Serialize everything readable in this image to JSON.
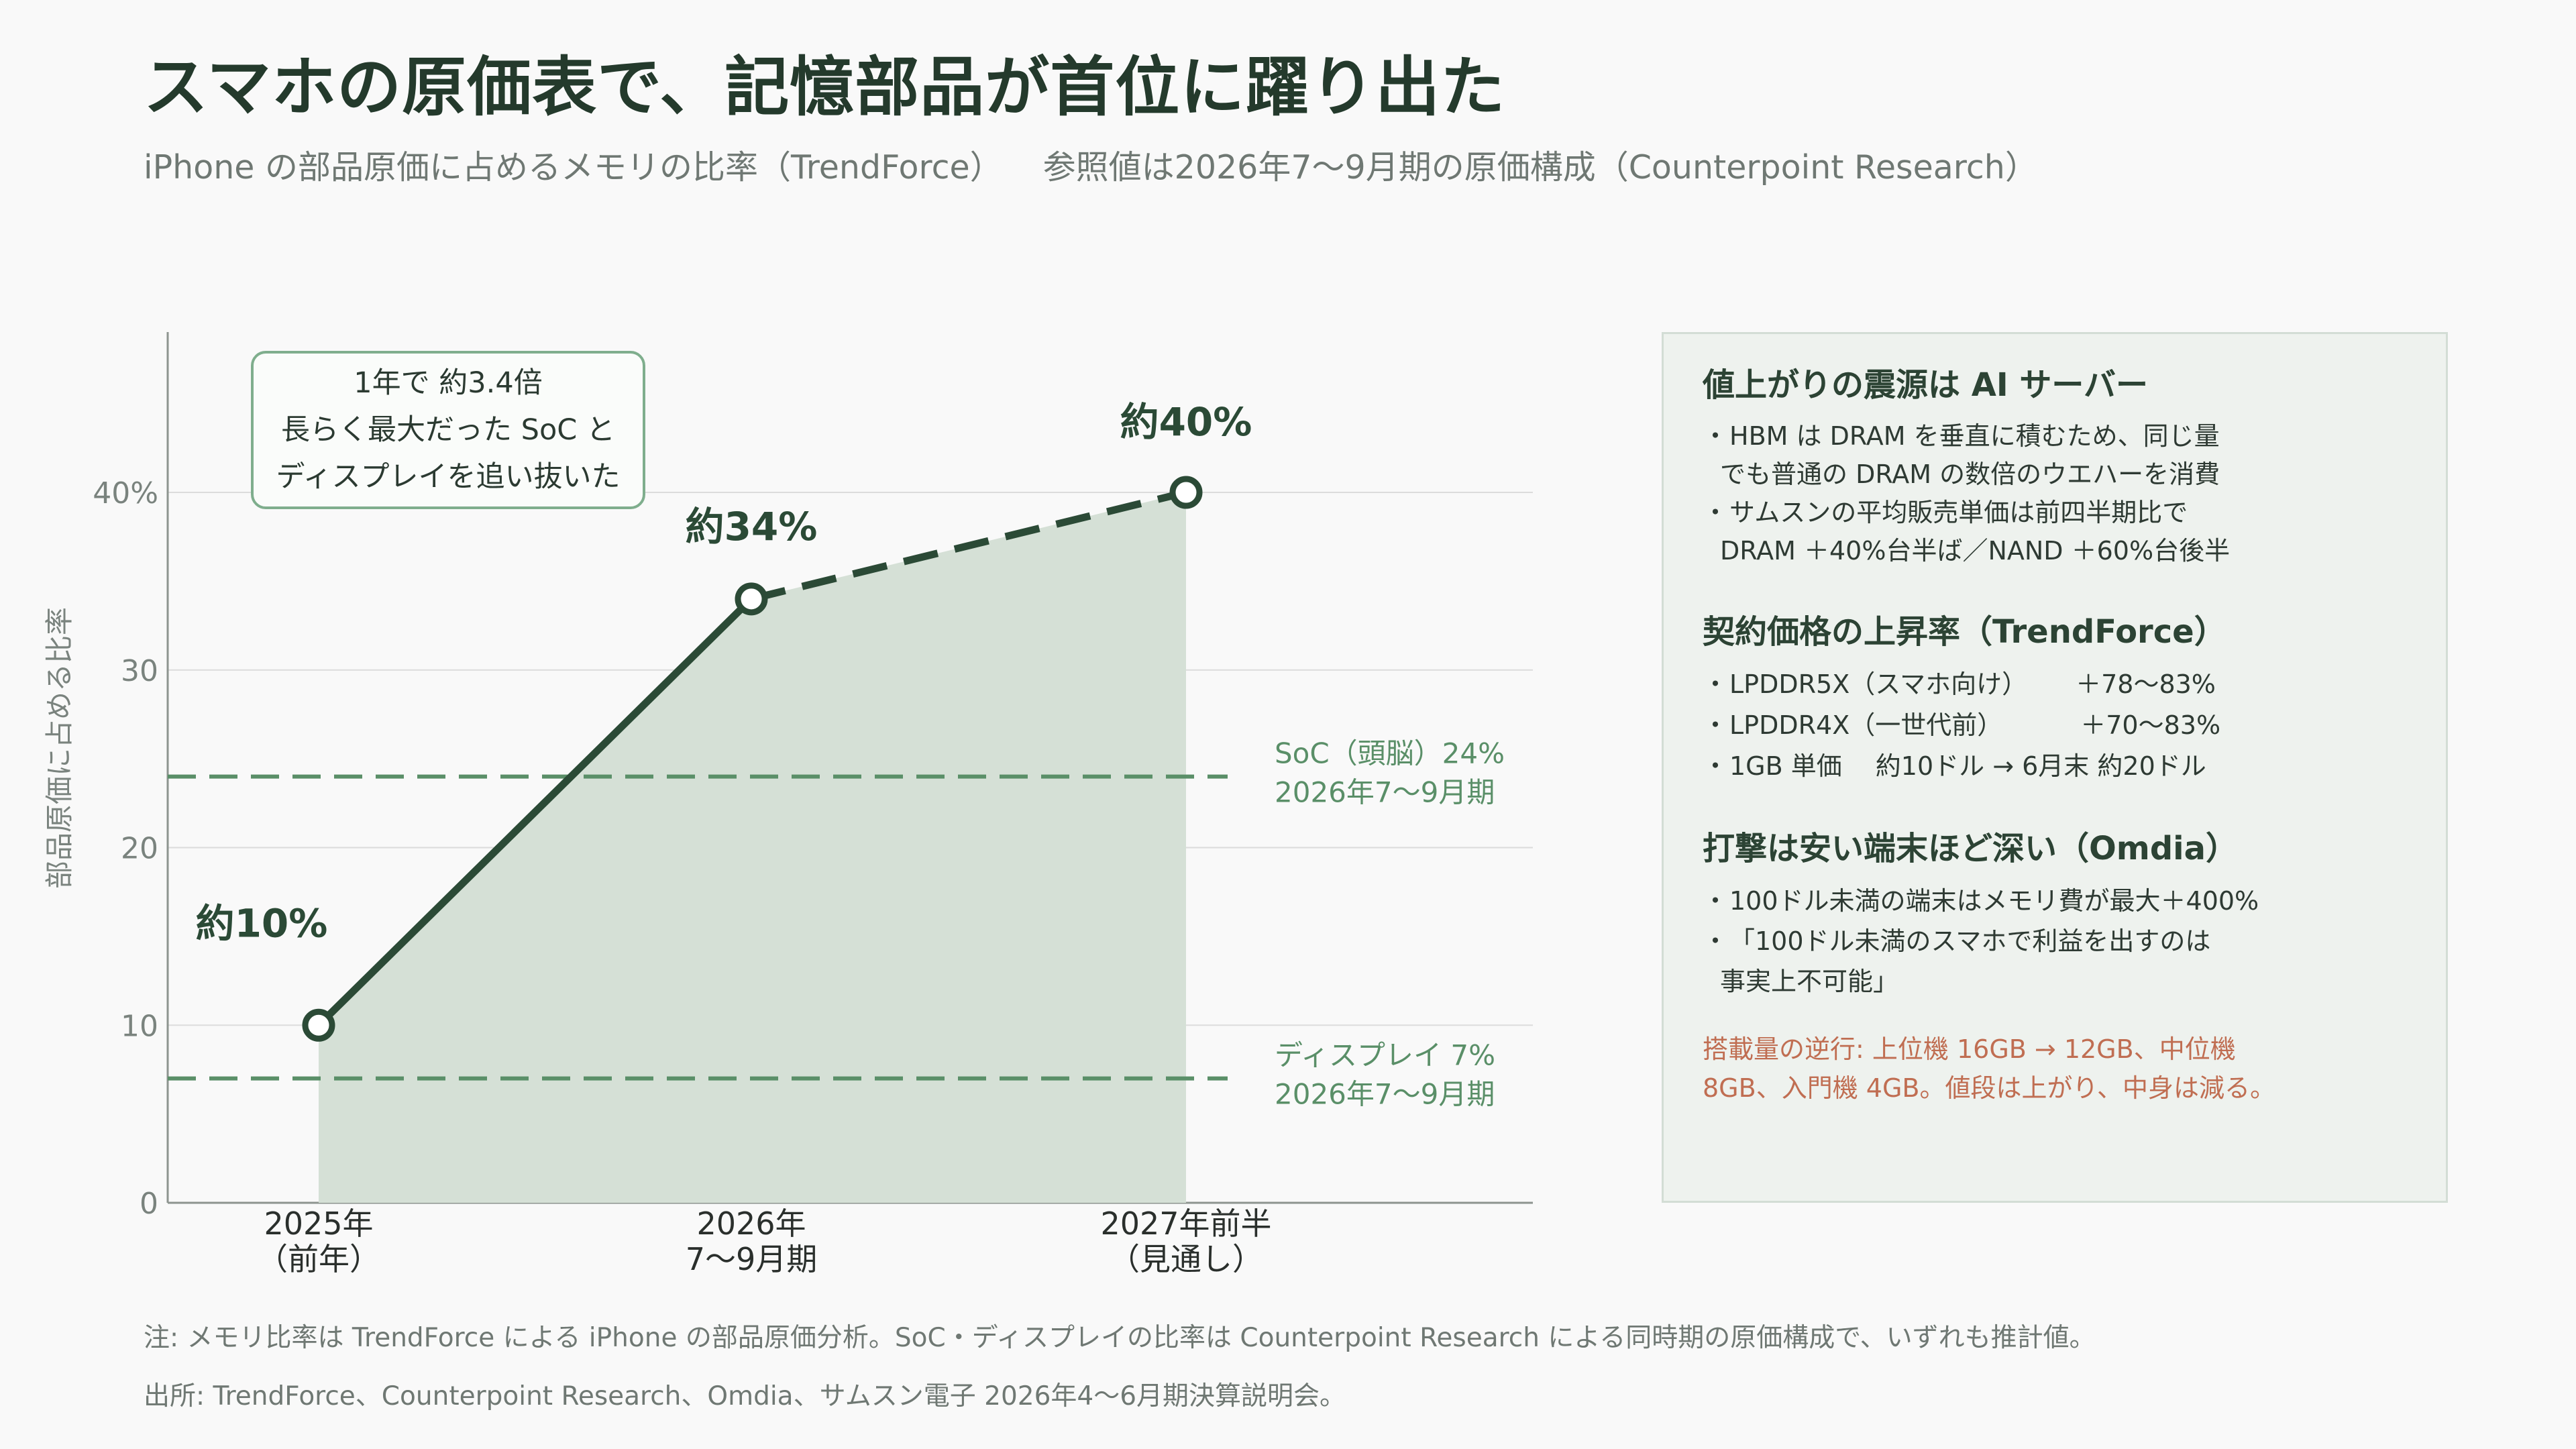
{
  "title": "スマホの原価表で、記憶部品が首位に躍り出た",
  "subtitle": {
    "left": "iPhone の部品原価に占めるメモリの比率（TrendForce）",
    "right": "参照値は2026年7〜9月期の原価構成（Counterpoint Research）"
  },
  "callout": {
    "line1": "1年で 約3.4倍",
    "line2": "長らく最大だった SoC と",
    "line3": "ディスプレイを追い抜いた"
  },
  "chart_data": {
    "type": "line",
    "ylabel": "部品原価に占める比率",
    "ylim": [
      0,
      40
    ],
    "yticks": [
      {
        "value": 0,
        "label": "0"
      },
      {
        "value": 10,
        "label": "10"
      },
      {
        "value": 20,
        "label": "20"
      },
      {
        "value": 30,
        "label": "30"
      },
      {
        "value": 40,
        "label": "40%"
      }
    ],
    "grid": true,
    "categories": [
      {
        "line1": "2025年",
        "line2": "（前年）"
      },
      {
        "line1": "2026年",
        "line2": "7〜9月期"
      },
      {
        "line1": "2027年前半",
        "line2": "（見通し）"
      }
    ],
    "series": [
      {
        "values": [
          10,
          34,
          40
        ],
        "labels": [
          "約10%",
          "約34%",
          "約40%"
        ],
        "projected_from_index": 1,
        "color": "#2b4a36",
        "fill": "#d5e0d6"
      }
    ],
    "reference_lines": [
      {
        "value": 24,
        "label1": "SoC（頭脳）24%",
        "label2": "2026年7〜9月期",
        "color": "#5a8f68"
      },
      {
        "value": 7,
        "label1": "ディスプレイ 7%",
        "label2": "2026年7〜9月期",
        "color": "#5a8f68"
      }
    ]
  },
  "panel": {
    "sec1": {
      "title": "値上がりの震源は AI サーバー",
      "b1a": "HBM は DRAM を垂直に積むため、同じ量",
      "b1b": "でも普通の DRAM の数倍のウエハーを消費",
      "b2a": "サムスンの平均販売単価は前四半期比で",
      "b2b": "DRAM ＋40%台半ば／NAND ＋60%台後半"
    },
    "sec2": {
      "title": "契約価格の上昇率（TrendForce）",
      "r1_name": "LPDDR5X（スマホ向け）",
      "r1_val": "＋78〜83%",
      "r2_name": "LPDDR4X（一世代前）",
      "r2_val": "＋70〜83%",
      "r3_name": "1GB 単価",
      "r3_val": "約10ドル → 6月末 約20ドル"
    },
    "sec3": {
      "title": "打撃は安い端末ほど深い（Omdia）",
      "b1": "100ドル未満の端末はメモリ費が最大＋400%",
      "b2a": "「100ドル未満のスマホで利益を出すのは",
      "b2b": "事実上不可能」"
    },
    "warn1": "搭載量の逆行: 上位機 16GB → 12GB、中位機",
    "warn2": "8GB、入門機 4GB。値段は上がり、中身は減る。",
    "bullet": "・"
  },
  "note": "注: メモリ比率は TrendForce による iPhone の部品原価分析。SoC・ディスプレイの比率は Counterpoint Research による同時期の原価構成で、いずれも推計値。",
  "source": "出所: TrendForce、Counterpoint Research、Omdia、サムスン電子 2026年4〜6月期決算説明会。"
}
